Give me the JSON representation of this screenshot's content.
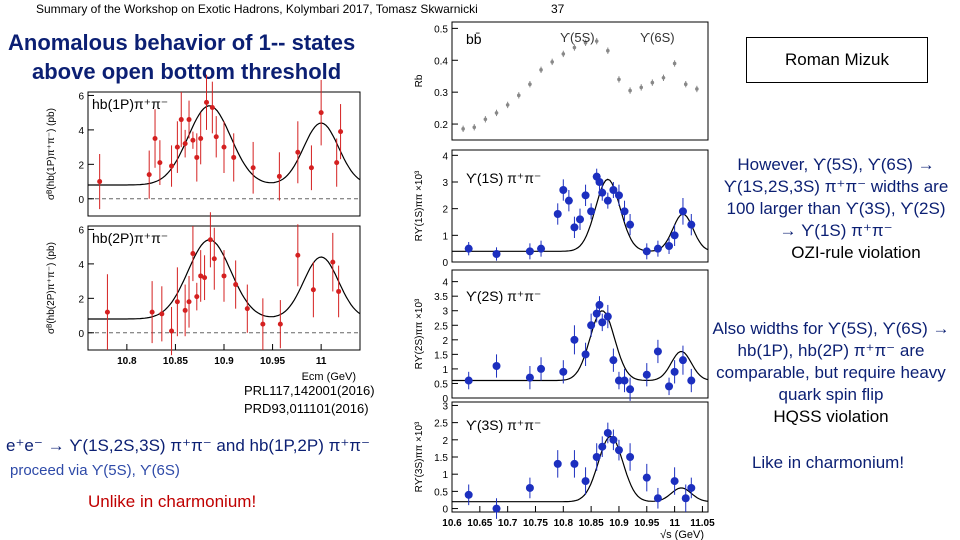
{
  "header": {
    "summary": "Summary of the Workshop on Exotic Hadrons, Kolymbari 2017, Tomasz Skwarnicki",
    "page": "37"
  },
  "title": {
    "line1": "Anomalous behavior of 1-- states",
    "line2": "above open bottom threshold"
  },
  "author": "Roman Mizuk",
  "right_text": {
    "p1": "However, ϒ(5S), ϒ(6S) → ϒ(1S,2S,3S) π⁺π⁻ widths are 100 larger than ϒ(3S), ϒ(2S) → ϒ(1S) π⁺π⁻",
    "p1_note": "OZI-rule violation",
    "p2": "Also widths for ϒ(5S), ϒ(6S) → hb(1P), hb(2P) π⁺π⁻ are comparable, but require heavy quark spin flip",
    "p2_note": "HQSS violation",
    "p3": "Like in charmonium!"
  },
  "refs": [
    "PRL117,142001(2016)",
    "PRD93,011101(2016)"
  ],
  "bottom": {
    "line1": "e⁺e⁻ → ϒ(1S,2S,3S) π⁺π⁻ and hb(1P,2P) π⁺π⁻",
    "line2": "proceed via ϒ(5S), ϒ(6S)",
    "line3": "Unlike in charmonium!"
  },
  "colors": {
    "title": "#0b1f73",
    "data_red": "#d42020",
    "data_blue": "#1c2fbf",
    "warning": "#c00000"
  },
  "chart_data": [
    {
      "type": "scatter",
      "label": "hb(1P)π⁺π⁻",
      "ylabel": "σᴮ(hb(1P)π⁺π⁻) (pb)",
      "xlim": [
        10.76,
        11.04
      ],
      "ylim": [
        -1,
        6.2
      ],
      "yticks": [
        0,
        2,
        4,
        6
      ],
      "x": [
        10.772,
        10.823,
        10.829,
        10.834,
        10.846,
        10.852,
        10.856,
        10.86,
        10.864,
        10.868,
        10.872,
        10.876,
        10.882,
        10.888,
        10.892,
        10.9,
        10.91,
        10.93,
        10.957,
        10.976,
        10.99,
        11.0,
        11.016,
        11.02
      ],
      "y": [
        1.0,
        1.4,
        3.5,
        2.1,
        1.9,
        3.0,
        4.6,
        3.2,
        4.6,
        3.4,
        2.4,
        3.5,
        5.6,
        5.3,
        3.6,
        3.0,
        2.4,
        1.8,
        1.3,
        2.7,
        1.8,
        5.0,
        2.1,
        3.9
      ],
      "yerr": [
        1.6,
        1.4,
        1.7,
        1.3,
        1.2,
        1.5,
        1.6,
        0.8,
        1.1,
        0.5,
        1.4,
        1.5,
        1.6,
        1.5,
        1.2,
        1.5,
        1.4,
        1.5,
        1.4,
        1.8,
        1.3,
        1.9,
        1.4,
        1.6
      ]
    },
    {
      "type": "scatter",
      "label": "hb(2P)π⁺π⁻",
      "ylabel": "σᴮ(hb(2P)π⁺π⁻) (pb)",
      "xlabel": "Ecm (GeV)",
      "xlim": [
        10.76,
        11.04
      ],
      "ylim": [
        -1,
        6.2
      ],
      "yticks": [
        0,
        2,
        4,
        6
      ],
      "xticks": [
        10.8,
        10.85,
        10.9,
        10.95,
        11.0
      ],
      "xticklabels": [
        "10.8",
        "10.85",
        "10.9",
        "10.95",
        "11"
      ],
      "x": [
        10.78,
        10.826,
        10.836,
        10.846,
        10.852,
        10.86,
        10.864,
        10.868,
        10.872,
        10.876,
        10.88,
        10.886,
        10.89,
        10.9,
        10.912,
        10.924,
        10.94,
        10.958,
        10.976,
        10.992,
        11.012,
        11.018
      ],
      "y": [
        1.2,
        1.2,
        1.1,
        0.1,
        1.8,
        1.3,
        1.8,
        4.6,
        2.1,
        3.3,
        3.2,
        5.4,
        4.3,
        3.3,
        2.8,
        1.4,
        0.5,
        0.5,
        4.5,
        2.5,
        4.1,
        2.4
      ],
      "yerr": [
        2.2,
        1.8,
        1.6,
        1.4,
        2.0,
        1.5,
        1.5,
        1.6,
        0.8,
        1.5,
        1.3,
        1.6,
        1.8,
        1.5,
        1.4,
        1.4,
        1.5,
        1.4,
        1.8,
        1.6,
        1.7,
        1.5
      ]
    },
    {
      "type": "scatter",
      "label": "bb̄",
      "ylabel": "Rb",
      "annotations": [
        "ϒ(5S)",
        "ϒ(6S)"
      ],
      "xlim": [
        10.6,
        11.06
      ],
      "ylim": [
        0.15,
        0.52
      ],
      "yticks": [
        0.2,
        0.3,
        0.4,
        0.5
      ],
      "x": [
        10.62,
        10.64,
        10.66,
        10.68,
        10.7,
        10.72,
        10.74,
        10.76,
        10.78,
        10.8,
        10.82,
        10.84,
        10.86,
        10.88,
        10.9,
        10.92,
        10.94,
        10.96,
        10.98,
        11.0,
        11.02,
        11.04
      ],
      "y": [
        0.185,
        0.19,
        0.215,
        0.235,
        0.26,
        0.29,
        0.325,
        0.37,
        0.395,
        0.42,
        0.44,
        0.455,
        0.46,
        0.43,
        0.34,
        0.305,
        0.315,
        0.33,
        0.345,
        0.39,
        0.325,
        0.31
      ],
      "yerr": [
        0.01,
        0.01,
        0.01,
        0.01,
        0.01,
        0.01,
        0.01,
        0.01,
        0.01,
        0.01,
        0.01,
        0.01,
        0.01,
        0.01,
        0.01,
        0.01,
        0.01,
        0.01,
        0.01,
        0.01,
        0.01,
        0.01
      ]
    },
    {
      "type": "scatter",
      "label": "ϒ(1S) π⁺π⁻",
      "ylabel": "Rϒ(1S)ππ ×10³",
      "xlim": [
        10.6,
        11.06
      ],
      "ylim": [
        0,
        4.2
      ],
      "yticks": [
        0,
        1,
        2,
        3,
        4
      ],
      "x": [
        10.63,
        10.68,
        10.74,
        10.76,
        10.79,
        10.8,
        10.81,
        10.82,
        10.83,
        10.84,
        10.85,
        10.86,
        10.865,
        10.87,
        10.88,
        10.89,
        10.9,
        10.91,
        10.92,
        10.95,
        10.97,
        10.99,
        11.0,
        11.015,
        11.03
      ],
      "y": [
        0.5,
        0.3,
        0.4,
        0.5,
        1.8,
        2.7,
        2.3,
        1.3,
        1.6,
        2.5,
        1.9,
        3.2,
        3.0,
        2.6,
        2.3,
        2.7,
        2.5,
        1.9,
        1.4,
        0.4,
        0.5,
        0.6,
        1.0,
        1.9,
        1.4
      ],
      "yerr": [
        0.25,
        0.25,
        0.3,
        0.3,
        0.4,
        0.4,
        0.4,
        0.4,
        0.4,
        0.4,
        0.3,
        0.3,
        0.3,
        0.3,
        0.3,
        0.3,
        0.4,
        0.4,
        0.4,
        0.3,
        0.3,
        0.3,
        0.4,
        0.5,
        0.4
      ]
    },
    {
      "type": "scatter",
      "label": "ϒ(2S) π⁺π⁻",
      "ylabel": "Rϒ(2S)ππ ×10³",
      "xlim": [
        10.6,
        11.06
      ],
      "ylim": [
        0,
        4.4
      ],
      "yticks": [
        0,
        0.5,
        1,
        1.5,
        2,
        2.5,
        3,
        3.5,
        4
      ],
      "x": [
        10.63,
        10.68,
        10.74,
        10.76,
        10.8,
        10.82,
        10.84,
        10.85,
        10.86,
        10.865,
        10.87,
        10.88,
        10.89,
        10.9,
        10.91,
        10.92,
        10.95,
        10.97,
        10.99,
        11.0,
        11.015,
        11.03
      ],
      "y": [
        0.6,
        1.1,
        0.7,
        1.0,
        0.9,
        2.0,
        1.5,
        2.5,
        2.9,
        3.2,
        2.6,
        2.8,
        1.3,
        0.6,
        0.6,
        0.3,
        0.8,
        1.6,
        0.4,
        0.9,
        1.3,
        0.6
      ],
      "yerr": [
        0.3,
        0.4,
        0.4,
        0.4,
        0.4,
        0.5,
        0.4,
        0.4,
        0.3,
        0.3,
        0.3,
        0.4,
        0.4,
        0.3,
        0.4,
        0.4,
        0.4,
        0.4,
        0.3,
        0.4,
        0.5,
        0.4
      ]
    },
    {
      "type": "scatter",
      "label": "ϒ(3S) π⁺π⁻",
      "ylabel": "Rϒ(3S)ππ ×10³",
      "xlabel": "√s (GeV)",
      "xlim": [
        10.6,
        11.06
      ],
      "ylim": [
        -0.1,
        3.1
      ],
      "yticks": [
        0,
        0.5,
        1,
        1.5,
        2,
        2.5,
        3
      ],
      "xticks": [
        10.6,
        10.65,
        10.7,
        10.75,
        10.8,
        10.85,
        10.9,
        10.95,
        11.0,
        11.05
      ],
      "xticklabels": [
        "10.6",
        "10.65",
        "10.7",
        "10.75",
        "10.8",
        "10.85",
        "10.9",
        "10.95",
        "11",
        "11.05"
      ],
      "x": [
        10.63,
        10.68,
        10.74,
        10.79,
        10.82,
        10.84,
        10.86,
        10.87,
        10.88,
        10.89,
        10.9,
        10.92,
        10.95,
        10.97,
        11.0,
        11.02,
        11.03
      ],
      "y": [
        0.4,
        0.0,
        0.6,
        1.3,
        1.3,
        0.8,
        1.5,
        1.8,
        2.2,
        2.0,
        1.7,
        1.5,
        0.9,
        0.3,
        0.8,
        0.3,
        0.6
      ],
      "yerr": [
        0.3,
        0.3,
        0.3,
        0.4,
        0.4,
        0.4,
        0.4,
        0.3,
        0.3,
        0.3,
        0.3,
        0.4,
        0.4,
        0.3,
        0.4,
        0.4,
        0.3
      ]
    }
  ]
}
